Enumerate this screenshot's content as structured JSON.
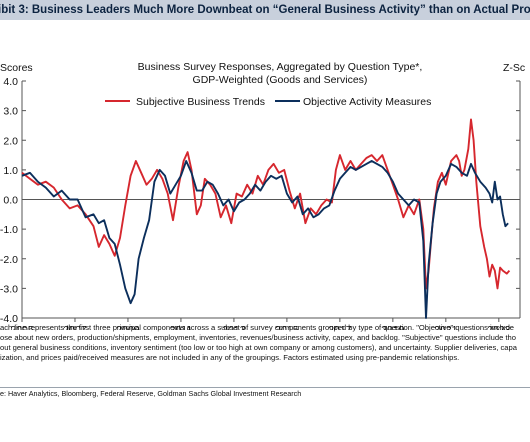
{
  "exhibit_title": "ibit 3: Business Leaders Much More Downbeat on “General Business Activity” than on Actual Production, Shipments, and Employ",
  "chart_data": {
    "type": "line",
    "title": [
      "Business Survey Responses, Aggregated by Question Type*,",
      "GDP-Weighted (Goods and Services)"
    ],
    "ylabel_left": "Scores",
    "ylabel_right": "Z-Sc",
    "ylim": [
      -4.0,
      4.0
    ],
    "xlim": [
      2005,
      2023.8
    ],
    "y_ticks": [
      "4.0",
      "3.0",
      "2.0",
      "1.0",
      "0.0",
      "-1.0",
      "-2.0",
      "-3.0",
      "-4.0"
    ],
    "x_ticks": [
      "2005",
      "2007",
      "2009",
      "2011",
      "2013",
      "2015",
      "2017",
      "2019",
      "2021",
      "2023"
    ],
    "legend_position": "top-left",
    "grid": false,
    "series": [
      {
        "name": "Subjective Business Trends",
        "color": "#d6272e",
        "points": [
          [
            2005.0,
            0.9
          ],
          [
            2005.3,
            0.7
          ],
          [
            2005.6,
            0.5
          ],
          [
            2005.9,
            0.6
          ],
          [
            2006.2,
            0.4
          ],
          [
            2006.5,
            0.0
          ],
          [
            2006.8,
            -0.3
          ],
          [
            2007.1,
            -0.2
          ],
          [
            2007.4,
            -0.5
          ],
          [
            2007.7,
            -0.9
          ],
          [
            2007.9,
            -1.6
          ],
          [
            2008.1,
            -1.2
          ],
          [
            2008.3,
            -1.5
          ],
          [
            2008.5,
            -1.9
          ],
          [
            2008.7,
            -1.3
          ],
          [
            2008.9,
            -0.2
          ],
          [
            2009.1,
            0.8
          ],
          [
            2009.3,
            1.3
          ],
          [
            2009.5,
            0.9
          ],
          [
            2009.7,
            0.5
          ],
          [
            2009.9,
            0.7
          ],
          [
            2010.1,
            1.0
          ],
          [
            2010.3,
            0.7
          ],
          [
            2010.5,
            0.2
          ],
          [
            2010.7,
            -0.7
          ],
          [
            2010.9,
            0.4
          ],
          [
            2011.1,
            1.3
          ],
          [
            2011.25,
            1.6
          ],
          [
            2011.4,
            1.0
          ],
          [
            2011.6,
            -0.5
          ],
          [
            2011.75,
            -0.2
          ],
          [
            2011.9,
            0.7
          ],
          [
            2012.1,
            0.5
          ],
          [
            2012.3,
            0.2
          ],
          [
            2012.5,
            -0.6
          ],
          [
            2012.7,
            -0.2
          ],
          [
            2012.9,
            -0.8
          ],
          [
            2013.1,
            0.2
          ],
          [
            2013.3,
            0.1
          ],
          [
            2013.5,
            0.5
          ],
          [
            2013.7,
            0.2
          ],
          [
            2013.9,
            0.8
          ],
          [
            2014.1,
            0.5
          ],
          [
            2014.3,
            1.0
          ],
          [
            2014.5,
            1.2
          ],
          [
            2014.7,
            0.9
          ],
          [
            2014.9,
            1.0
          ],
          [
            2015.1,
            0.3
          ],
          [
            2015.3,
            -0.3
          ],
          [
            2015.5,
            0.2
          ],
          [
            2015.7,
            -0.8
          ],
          [
            2015.9,
            -0.3
          ],
          [
            2016.1,
            -0.5
          ],
          [
            2016.3,
            -0.2
          ],
          [
            2016.5,
            0.0
          ],
          [
            2016.7,
            -0.1
          ],
          [
            2016.85,
            1.0
          ],
          [
            2017.0,
            1.5
          ],
          [
            2017.2,
            1.0
          ],
          [
            2017.4,
            1.3
          ],
          [
            2017.6,
            1.0
          ],
          [
            2017.8,
            1.2
          ],
          [
            2018.0,
            1.4
          ],
          [
            2018.2,
            1.5
          ],
          [
            2018.4,
            1.3
          ],
          [
            2018.6,
            1.5
          ],
          [
            2018.8,
            1.0
          ],
          [
            2019.0,
            0.5
          ],
          [
            2019.2,
            0.0
          ],
          [
            2019.4,
            -0.6
          ],
          [
            2019.6,
            -0.2
          ],
          [
            2019.8,
            -0.5
          ],
          [
            2020.0,
            0.0
          ],
          [
            2020.15,
            -1.0
          ],
          [
            2020.25,
            -3.0
          ],
          [
            2020.35,
            -2.4
          ],
          [
            2020.45,
            -1.3
          ],
          [
            2020.55,
            -0.3
          ],
          [
            2020.7,
            0.6
          ],
          [
            2020.85,
            0.9
          ],
          [
            2021.0,
            0.5
          ],
          [
            2021.2,
            1.3
          ],
          [
            2021.4,
            1.5
          ],
          [
            2021.5,
            1.3
          ],
          [
            2021.6,
            0.8
          ],
          [
            2021.7,
            1.0
          ],
          [
            2021.85,
            1.7
          ],
          [
            2021.95,
            2.7
          ],
          [
            2022.05,
            2.0
          ],
          [
            2022.15,
            0.6
          ],
          [
            2022.3,
            -0.9
          ],
          [
            2022.45,
            -1.6
          ],
          [
            2022.55,
            -2.0
          ],
          [
            2022.65,
            -2.6
          ],
          [
            2022.75,
            -2.2
          ],
          [
            2022.85,
            -2.4
          ],
          [
            2022.95,
            -3.0
          ],
          [
            2023.05,
            -2.3
          ],
          [
            2023.15,
            -2.4
          ],
          [
            2023.3,
            -2.5
          ],
          [
            2023.4,
            -2.4
          ]
        ]
      },
      {
        "name": "Objective Activity Measures",
        "color": "#0c2f5c",
        "points": [
          [
            2005.0,
            0.8
          ],
          [
            2005.3,
            0.9
          ],
          [
            2005.6,
            0.6
          ],
          [
            2005.9,
            0.4
          ],
          [
            2006.2,
            0.1
          ],
          [
            2006.5,
            0.3
          ],
          [
            2006.8,
            0.0
          ],
          [
            2007.1,
            0.0
          ],
          [
            2007.4,
            -0.6
          ],
          [
            2007.7,
            -0.5
          ],
          [
            2007.9,
            -0.8
          ],
          [
            2008.1,
            -0.7
          ],
          [
            2008.3,
            -1.3
          ],
          [
            2008.5,
            -1.5
          ],
          [
            2008.7,
            -2.2
          ],
          [
            2008.9,
            -3.0
          ],
          [
            2009.1,
            -3.5
          ],
          [
            2009.25,
            -3.2
          ],
          [
            2009.4,
            -2.0
          ],
          [
            2009.6,
            -1.3
          ],
          [
            2009.8,
            -0.7
          ],
          [
            2010.0,
            0.6
          ],
          [
            2010.2,
            1.0
          ],
          [
            2010.4,
            0.8
          ],
          [
            2010.6,
            0.2
          ],
          [
            2010.8,
            0.5
          ],
          [
            2011.0,
            0.8
          ],
          [
            2011.2,
            1.3
          ],
          [
            2011.4,
            0.9
          ],
          [
            2011.6,
            0.3
          ],
          [
            2011.8,
            0.3
          ],
          [
            2012.0,
            0.6
          ],
          [
            2012.2,
            0.5
          ],
          [
            2012.4,
            0.2
          ],
          [
            2012.6,
            -0.2
          ],
          [
            2012.8,
            0.0
          ],
          [
            2013.0,
            -0.4
          ],
          [
            2013.2,
            -0.1
          ],
          [
            2013.4,
            0.0
          ],
          [
            2013.6,
            0.2
          ],
          [
            2013.8,
            0.5
          ],
          [
            2014.0,
            0.3
          ],
          [
            2014.2,
            0.6
          ],
          [
            2014.4,
            0.8
          ],
          [
            2014.6,
            0.7
          ],
          [
            2014.8,
            0.8
          ],
          [
            2015.0,
            0.2
          ],
          [
            2015.2,
            -0.1
          ],
          [
            2015.4,
            0.1
          ],
          [
            2015.6,
            -0.5
          ],
          [
            2015.8,
            -0.3
          ],
          [
            2016.0,
            -0.6
          ],
          [
            2016.2,
            -0.5
          ],
          [
            2016.4,
            -0.3
          ],
          [
            2016.6,
            -0.2
          ],
          [
            2016.8,
            0.3
          ],
          [
            2017.0,
            0.7
          ],
          [
            2017.2,
            0.9
          ],
          [
            2017.4,
            1.1
          ],
          [
            2017.6,
            1.0
          ],
          [
            2017.8,
            1.1
          ],
          [
            2018.0,
            1.2
          ],
          [
            2018.2,
            1.3
          ],
          [
            2018.4,
            1.2
          ],
          [
            2018.6,
            1.1
          ],
          [
            2018.8,
            0.9
          ],
          [
            2019.0,
            0.6
          ],
          [
            2019.2,
            0.2
          ],
          [
            2019.4,
            0.0
          ],
          [
            2019.6,
            -0.2
          ],
          [
            2019.8,
            0.0
          ],
          [
            2020.0,
            -0.1
          ],
          [
            2020.15,
            -1.4
          ],
          [
            2020.25,
            -4.0
          ],
          [
            2020.35,
            -2.2
          ],
          [
            2020.5,
            -0.8
          ],
          [
            2020.65,
            0.2
          ],
          [
            2020.8,
            0.6
          ],
          [
            2021.0,
            0.8
          ],
          [
            2021.2,
            1.2
          ],
          [
            2021.4,
            1.1
          ],
          [
            2021.6,
            0.9
          ],
          [
            2021.8,
            0.8
          ],
          [
            2021.95,
            1.2
          ],
          [
            2022.1,
            0.9
          ],
          [
            2022.3,
            0.6
          ],
          [
            2022.5,
            0.4
          ],
          [
            2022.65,
            0.2
          ],
          [
            2022.75,
            -0.1
          ],
          [
            2022.85,
            0.6
          ],
          [
            2022.95,
            0.0
          ],
          [
            2023.05,
            0.1
          ],
          [
            2023.15,
            -0.5
          ],
          [
            2023.25,
            -0.9
          ],
          [
            2023.35,
            -0.8
          ]
        ]
      }
    ]
  },
  "footnotes": [
    "ach line represents the first three principal components across a subset of survey components grouped by type of question. \"Objective\" questions include",
    "ose about new orders, production/shipments, employment, inventories, revenues/business activity, capex, and backlog. \"Subjective\" questions include tho",
    "out general business conditions, inventory sentiment (too low or too high at own company or among customers), and uncertainty. Supplier deliveries, capa",
    "ization, and prices paid/received measures are not included in any of the groupings.  Factors estimated using pre-pandemic relationships."
  ],
  "source": "e: Haver Analytics, Bloomberg, Federal Reserve, Goldman Sachs Global Investment Research"
}
